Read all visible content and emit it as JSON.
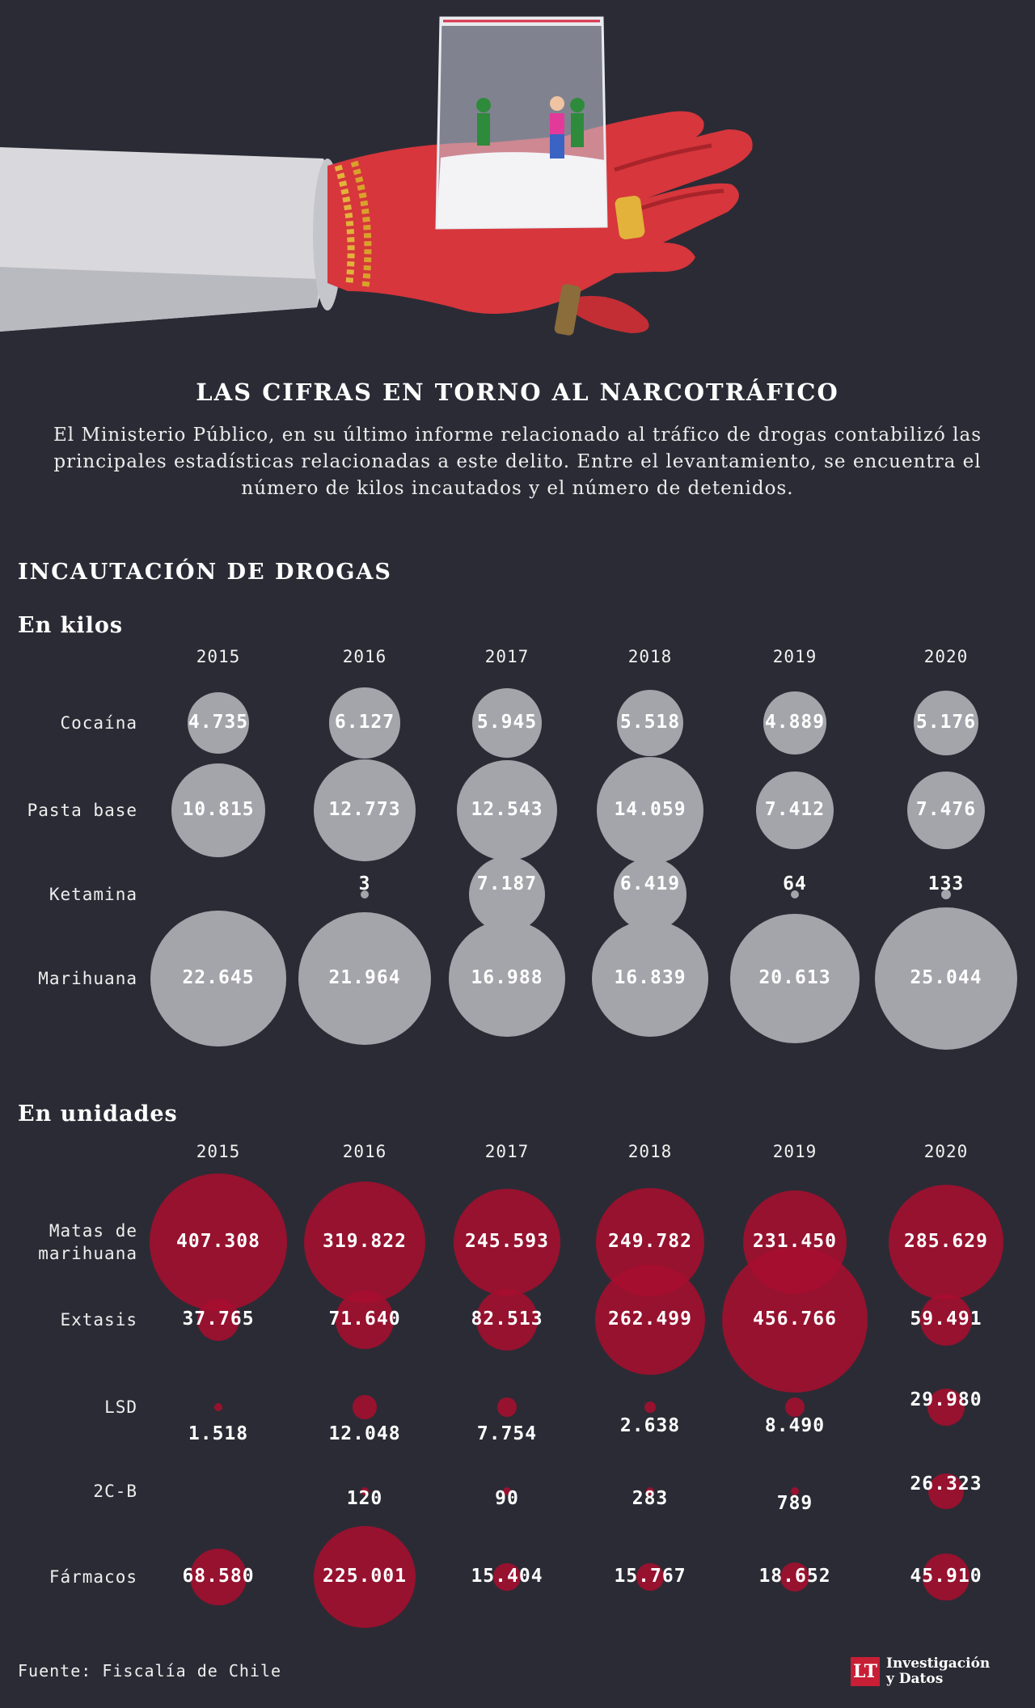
{
  "title": "LAS CIFRAS EN TORNO AL NARCOTRÁFICO",
  "intro": "El Ministerio Público, en su último informe relacionado al tráfico de drogas contabilizó las principales estadísticas relacionadas a este delito. Entre el levantamiento, se encuentra el número de kilos incautados y el número de detenidos.",
  "section_title": "INCAUTACIÓN DE DROGAS",
  "colors": {
    "background": "#2b2b35",
    "kilos_bubble": "#a4a4ab",
    "units_bubble": "#a80e2e",
    "brand": "#c71f35",
    "hand": "#d6363c"
  },
  "illustration": {
    "icon": "hand-holding-drug-bag-illustration"
  },
  "chart_data": [
    {
      "type": "bubble",
      "title": "En kilos",
      "years": [
        "2015",
        "2016",
        "2017",
        "2018",
        "2019",
        "2020"
      ],
      "series": [
        {
          "name": "Cocaína",
          "values": [
            4735,
            6127,
            5945,
            5518,
            4889,
            5176
          ],
          "labels": [
            "4.735",
            "6.127",
            "5.945",
            "5.518",
            "4.889",
            "5.176"
          ]
        },
        {
          "name": "Pasta base",
          "values": [
            10815,
            12773,
            12543,
            14059,
            7412,
            7476
          ],
          "labels": [
            "10.815",
            "12.773",
            "12.543",
            "14.059",
            "7.412",
            "7.476"
          ]
        },
        {
          "name": "Ketamina",
          "values": [
            null,
            3,
            7187,
            6419,
            64,
            133
          ],
          "labels": [
            "",
            "3",
            "7.187",
            "6.419",
            "64",
            "133"
          ]
        },
        {
          "name": "Marihuana",
          "values": [
            22645,
            21964,
            16988,
            16839,
            20613,
            25044
          ],
          "labels": [
            "22.645",
            "21.964",
            "16.988",
            "16.839",
            "20.613",
            "25.044"
          ]
        }
      ]
    },
    {
      "type": "bubble",
      "title": "En unidades",
      "years": [
        "2015",
        "2016",
        "2017",
        "2018",
        "2019",
        "2020"
      ],
      "series": [
        {
          "name": "Matas de marihuana",
          "values": [
            407308,
            319822,
            245593,
            249782,
            231450,
            285629
          ],
          "labels": [
            "407.308",
            "319.822",
            "245.593",
            "249.782",
            "231.450",
            "285.629"
          ]
        },
        {
          "name": "Extasis",
          "values": [
            37765,
            71640,
            82513,
            262499,
            456766,
            59491
          ],
          "labels": [
            "37.765",
            "71.640",
            "82.513",
            "262.499",
            "456.766",
            "59.491"
          ]
        },
        {
          "name": "LSD",
          "values": [
            1518,
            12048,
            7754,
            2638,
            8490,
            29980
          ],
          "labels": [
            "1.518",
            "12.048",
            "7.754",
            "2.638",
            "8.490",
            "29.980"
          ]
        },
        {
          "name": "2C-B",
          "values": [
            null,
            120,
            90,
            283,
            789,
            26323
          ],
          "labels": [
            "",
            "120",
            "90",
            "283",
            "789",
            "26.323"
          ]
        },
        {
          "name": "Fármacos",
          "values": [
            68580,
            225001,
            15404,
            15767,
            18652,
            45910
          ],
          "labels": [
            "68.580",
            "225.001",
            "15.404",
            "15.767",
            "18.652",
            "45.910"
          ]
        }
      ]
    }
  ],
  "footer": {
    "source": "Fuente: Fiscalía de Chile"
  },
  "brand": {
    "logo": "LT",
    "line1": "Investigación",
    "line2": "y Datos"
  }
}
